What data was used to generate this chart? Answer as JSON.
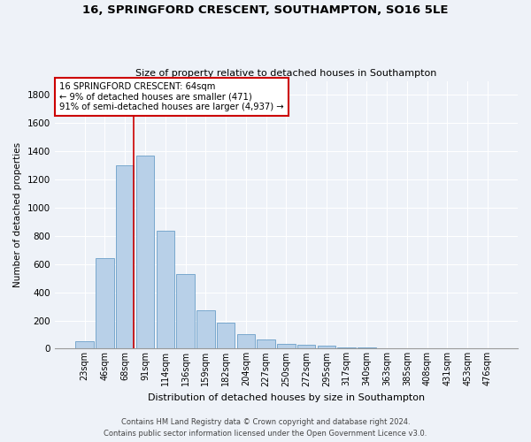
{
  "title_line1": "16, SPRINGFORD CRESCENT, SOUTHAMPTON, SO16 5LE",
  "title_line2": "Size of property relative to detached houses in Southampton",
  "xlabel": "Distribution of detached houses by size in Southampton",
  "ylabel": "Number of detached properties",
  "categories": [
    "23sqm",
    "46sqm",
    "68sqm",
    "91sqm",
    "114sqm",
    "136sqm",
    "159sqm",
    "182sqm",
    "204sqm",
    "227sqm",
    "250sqm",
    "272sqm",
    "295sqm",
    "317sqm",
    "340sqm",
    "363sqm",
    "385sqm",
    "408sqm",
    "431sqm",
    "453sqm",
    "476sqm"
  ],
  "values": [
    50,
    640,
    1300,
    1370,
    840,
    530,
    270,
    185,
    105,
    65,
    35,
    30,
    20,
    10,
    10,
    5,
    5,
    5,
    5,
    3,
    3
  ],
  "bar_color": "#b8d0e8",
  "bar_edge_color": "#6a9fc8",
  "background_color": "#eef2f8",
  "grid_color": "#ffffff",
  "annotation_box_color": "#cc0000",
  "property_line_color": "#cc0000",
  "annotation_line1": "16 SPRINGFORD CRESCENT: 64sqm",
  "annotation_line2": "← 9% of detached houses are smaller (471)",
  "annotation_line3": "91% of semi-detached houses are larger (4,937) →",
  "property_line_x": 2.42,
  "ylim": [
    0,
    1900
  ],
  "yticks": [
    0,
    200,
    400,
    600,
    800,
    1000,
    1200,
    1400,
    1600,
    1800
  ],
  "footnote1": "Contains HM Land Registry data © Crown copyright and database right 2024.",
  "footnote2": "Contains public sector information licensed under the Open Government Licence v3.0."
}
